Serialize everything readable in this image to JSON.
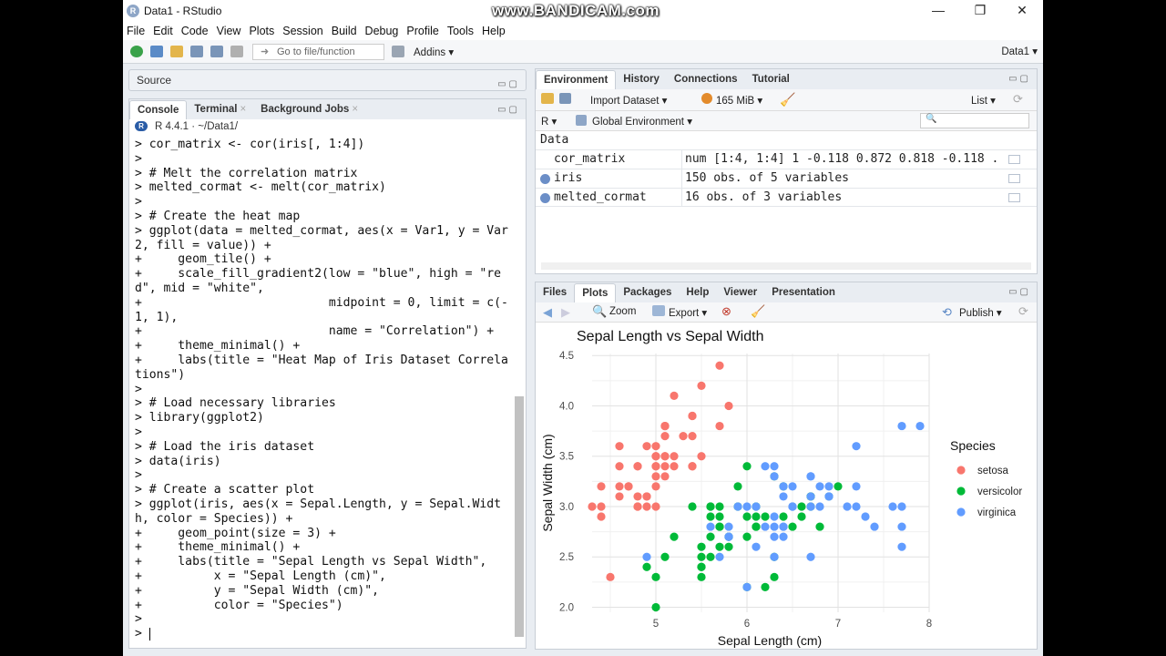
{
  "window": {
    "title": "Data1 - RStudio",
    "watermark": "www.BANDICAM.com",
    "min": "—",
    "restore": "❐",
    "close": "✕"
  },
  "menu": [
    "File",
    "Edit",
    "Code",
    "View",
    "Plots",
    "Session",
    "Build",
    "Debug",
    "Profile",
    "Tools",
    "Help"
  ],
  "toolbar": {
    "goto_placeholder": "Go to file/function",
    "addins": "Addins ▾",
    "project": "Data1 ▾"
  },
  "source": {
    "title": "Source"
  },
  "console": {
    "tabs": [
      "Console",
      "Terminal",
      "Background Jobs"
    ],
    "rversion": "R 4.4.1 · ~/Data1/",
    "lines": [
      "> cor_matrix <- cor(iris[, 1:4])",
      ">",
      "> # Melt the correlation matrix",
      "> melted_cormat <- melt(cor_matrix)",
      ">",
      "> # Create the heat map",
      "> ggplot(data = melted_cormat, aes(x = Var1, y = Var",
      "2, fill = value)) +",
      "+     geom_tile() +",
      "+     scale_fill_gradient2(low = \"blue\", high = \"re",
      "d\", mid = \"white\",",
      "+                          midpoint = 0, limit = c(-",
      "1, 1),",
      "+                          name = \"Correlation\") +",
      "+     theme_minimal() +",
      "+     labs(title = \"Heat Map of Iris Dataset Correla",
      "tions\")",
      ">",
      "> # Load necessary libraries",
      "> library(ggplot2)",
      ">",
      "> # Load the iris dataset",
      "> data(iris)",
      ">",
      "> # Create a scatter plot",
      "> ggplot(iris, aes(x = Sepal.Length, y = Sepal.Widt",
      "h, color = Species)) +",
      "+     geom_point(size = 3) +",
      "+     theme_minimal() +",
      "+     labs(title = \"Sepal Length vs Sepal Width\",",
      "+          x = \"Sepal Length (cm)\",",
      "+          y = \"Sepal Width (cm)\",",
      "+          color = \"Species\")",
      ">",
      "> "
    ]
  },
  "environment": {
    "tabs": [
      "Environment",
      "History",
      "Connections",
      "Tutorial"
    ],
    "import": "Import Dataset ▾",
    "memory": "165 MiB ▾",
    "view": "List ▾",
    "lang": "R ▾",
    "scope": "Global Environment ▾",
    "section": "Data",
    "rows": [
      {
        "name": "cor_matrix",
        "value": "num [1:4, 1:4] 1 -0.118 0.872 0.818 -0.118 ..."
      },
      {
        "name": "iris",
        "value": "150 obs. of 5 variables"
      },
      {
        "name": "melted_cormat",
        "value": "16 obs. of 3 variables"
      }
    ]
  },
  "plots": {
    "tabs": [
      "Files",
      "Plots",
      "Packages",
      "Help",
      "Viewer",
      "Presentation"
    ],
    "zoom": "Zoom",
    "export": "Export ▾",
    "publish": "Publish ▾"
  },
  "chart_data": {
    "type": "scatter",
    "title": "Sepal Length vs Sepal Width",
    "xlabel": "Sepal Length (cm)",
    "ylabel": "Sepal Width (cm)",
    "xlim": [
      4.3,
      8.0
    ],
    "ylim": [
      2.0,
      4.4
    ],
    "xticks": [
      5,
      6,
      7,
      8
    ],
    "yticks": [
      2.0,
      2.5,
      3.0,
      3.5,
      4.0,
      4.5
    ],
    "legend_title": "Species",
    "legend_position": "right",
    "grid": true,
    "series": [
      {
        "name": "setosa",
        "color": "#F8766D",
        "points": [
          [
            5.1,
            3.5
          ],
          [
            4.9,
            3.0
          ],
          [
            4.7,
            3.2
          ],
          [
            4.6,
            3.1
          ],
          [
            5.0,
            3.6
          ],
          [
            5.4,
            3.9
          ],
          [
            4.6,
            3.4
          ],
          [
            5.0,
            3.4
          ],
          [
            4.4,
            2.9
          ],
          [
            4.9,
            3.1
          ],
          [
            5.4,
            3.7
          ],
          [
            4.8,
            3.4
          ],
          [
            4.8,
            3.0
          ],
          [
            4.3,
            3.0
          ],
          [
            5.8,
            4.0
          ],
          [
            5.7,
            4.4
          ],
          [
            5.4,
            3.9
          ],
          [
            5.1,
            3.5
          ],
          [
            5.7,
            3.8
          ],
          [
            5.1,
            3.8
          ],
          [
            5.4,
            3.4
          ],
          [
            5.1,
            3.7
          ],
          [
            4.6,
            3.6
          ],
          [
            5.1,
            3.3
          ],
          [
            4.8,
            3.4
          ],
          [
            5.0,
            3.0
          ],
          [
            5.0,
            3.4
          ],
          [
            5.2,
            3.5
          ],
          [
            5.2,
            3.4
          ],
          [
            4.7,
            3.2
          ],
          [
            4.8,
            3.1
          ],
          [
            5.4,
            3.4
          ],
          [
            5.2,
            4.1
          ],
          [
            5.5,
            4.2
          ],
          [
            4.9,
            3.1
          ],
          [
            5.0,
            3.2
          ],
          [
            5.5,
            3.5
          ],
          [
            4.9,
            3.6
          ],
          [
            4.4,
            3.0
          ],
          [
            5.1,
            3.4
          ],
          [
            5.0,
            3.5
          ],
          [
            4.5,
            2.3
          ],
          [
            4.4,
            3.2
          ],
          [
            5.0,
            3.5
          ],
          [
            5.1,
            3.8
          ],
          [
            4.8,
            3.0
          ],
          [
            5.1,
            3.8
          ],
          [
            4.6,
            3.2
          ],
          [
            5.3,
            3.7
          ],
          [
            5.0,
            3.3
          ]
        ]
      },
      {
        "name": "versicolor",
        "color": "#00BA38",
        "points": [
          [
            7.0,
            3.2
          ],
          [
            6.4,
            3.2
          ],
          [
            6.9,
            3.1
          ],
          [
            5.5,
            2.3
          ],
          [
            6.5,
            2.8
          ],
          [
            5.7,
            2.8
          ],
          [
            6.3,
            3.3
          ],
          [
            4.9,
            2.4
          ],
          [
            6.6,
            2.9
          ],
          [
            5.2,
            2.7
          ],
          [
            5.0,
            2.0
          ],
          [
            5.9,
            3.0
          ],
          [
            6.0,
            2.2
          ],
          [
            6.1,
            2.9
          ],
          [
            5.6,
            2.9
          ],
          [
            6.7,
            3.1
          ],
          [
            5.6,
            3.0
          ],
          [
            5.8,
            2.7
          ],
          [
            6.2,
            2.2
          ],
          [
            5.6,
            2.5
          ],
          [
            5.9,
            3.2
          ],
          [
            6.1,
            2.8
          ],
          [
            6.3,
            2.5
          ],
          [
            6.1,
            2.8
          ],
          [
            6.4,
            2.9
          ],
          [
            6.6,
            3.0
          ],
          [
            6.8,
            2.8
          ],
          [
            6.7,
            3.0
          ],
          [
            6.0,
            2.9
          ],
          [
            5.7,
            2.6
          ],
          [
            5.5,
            2.4
          ],
          [
            5.5,
            2.4
          ],
          [
            5.8,
            2.7
          ],
          [
            6.0,
            2.7
          ],
          [
            5.4,
            3.0
          ],
          [
            6.0,
            3.4
          ],
          [
            6.7,
            3.1
          ],
          [
            6.3,
            2.3
          ],
          [
            5.6,
            3.0
          ],
          [
            5.5,
            2.5
          ],
          [
            5.5,
            2.6
          ],
          [
            6.1,
            3.0
          ],
          [
            5.8,
            2.6
          ],
          [
            5.0,
            2.3
          ],
          [
            5.6,
            2.7
          ],
          [
            5.7,
            3.0
          ],
          [
            5.7,
            2.9
          ],
          [
            6.2,
            2.9
          ],
          [
            5.1,
            2.5
          ],
          [
            5.7,
            2.8
          ]
        ]
      },
      {
        "name": "virginica",
        "color": "#619CFF",
        "points": [
          [
            6.3,
            3.3
          ],
          [
            5.8,
            2.7
          ],
          [
            7.1,
            3.0
          ],
          [
            6.3,
            2.9
          ],
          [
            6.5,
            3.0
          ],
          [
            7.6,
            3.0
          ],
          [
            4.9,
            2.5
          ],
          [
            7.3,
            2.9
          ],
          [
            6.7,
            2.5
          ],
          [
            7.2,
            3.6
          ],
          [
            6.5,
            3.2
          ],
          [
            6.4,
            2.7
          ],
          [
            6.8,
            3.0
          ],
          [
            5.7,
            2.5
          ],
          [
            5.8,
            2.8
          ],
          [
            6.4,
            3.2
          ],
          [
            6.5,
            3.0
          ],
          [
            7.7,
            3.8
          ],
          [
            7.7,
            2.6
          ],
          [
            6.0,
            2.2
          ],
          [
            6.9,
            3.2
          ],
          [
            5.6,
            2.8
          ],
          [
            7.7,
            2.8
          ],
          [
            6.3,
            2.7
          ],
          [
            6.7,
            3.3
          ],
          [
            7.2,
            3.2
          ],
          [
            6.2,
            2.8
          ],
          [
            6.1,
            3.0
          ],
          [
            6.4,
            2.8
          ],
          [
            7.2,
            3.0
          ],
          [
            7.4,
            2.8
          ],
          [
            7.9,
            3.8
          ],
          [
            6.4,
            2.8
          ],
          [
            6.3,
            2.8
          ],
          [
            6.1,
            2.6
          ],
          [
            7.7,
            3.0
          ],
          [
            6.3,
            3.4
          ],
          [
            6.4,
            3.1
          ],
          [
            6.0,
            3.0
          ],
          [
            6.9,
            3.1
          ],
          [
            6.7,
            3.1
          ],
          [
            6.9,
            3.1
          ],
          [
            5.8,
            2.7
          ],
          [
            6.8,
            3.2
          ],
          [
            6.7,
            3.3
          ],
          [
            6.7,
            3.0
          ],
          [
            6.3,
            2.5
          ],
          [
            6.5,
            3.0
          ],
          [
            6.2,
            3.4
          ],
          [
            5.9,
            3.0
          ]
        ]
      }
    ]
  }
}
